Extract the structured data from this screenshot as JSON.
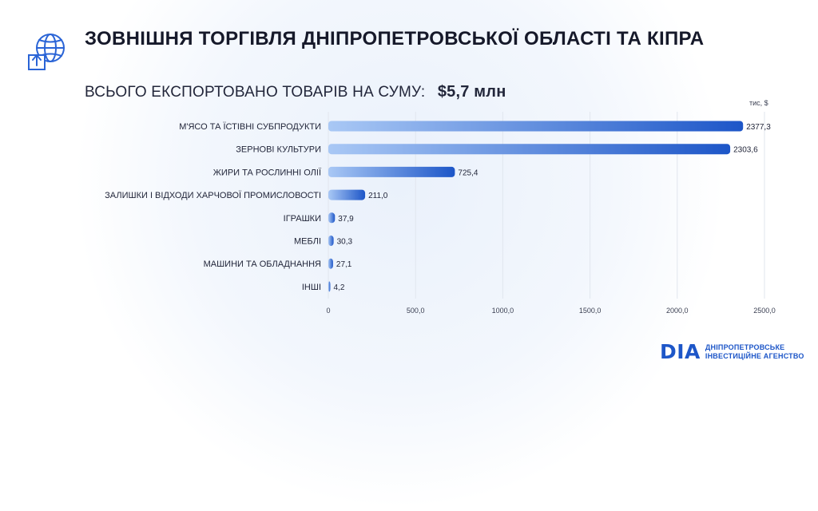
{
  "header": {
    "title": "ЗОВНІШНЯ ТОРГІВЛЯ ДНІПРОПЕТРОВСЬКОЇ ОБЛАСТІ ТА КІПРА",
    "subtitle_label": "ВСЬОГО ЕКСПОРТОВАНО ТОВАРІВ НА СУМУ:",
    "subtitle_value": "$5,7 млн"
  },
  "icons": {
    "header_icon": "globe-export-box-icon"
  },
  "colors": {
    "bar_start": "#a9c8f5",
    "bar_end": "#1d56c8",
    "brand": "#1d56c8"
  },
  "chart_data": {
    "type": "bar",
    "orientation": "horizontal",
    "unit_label": "тис, $",
    "categories": [
      "М'ЯСО ТА ЇСТІВНІ СУБПРОДУКТИ",
      "ЗЕРНОВІ КУЛЬТУРИ",
      "ЖИРИ ТА РОСЛИННІ ОЛІЇ",
      "ЗАЛИШКИ І ВІДХОДИ ХАРЧОВОЇ ПРОМИСЛОВОСТІ",
      "ІГРАШКИ",
      "МЕБЛІ",
      "МАШИНИ ТА ОБЛАДНАННЯ",
      "ІНШІ"
    ],
    "values": [
      2377.3,
      2303.6,
      725.4,
      211.0,
      37.9,
      30.3,
      27.1,
      4.2
    ],
    "value_labels": [
      "2377,3",
      "2303,6",
      "725,4",
      "211,0",
      "37,9",
      "30,3",
      "27,1",
      "4,2"
    ],
    "x_ticks": [
      0,
      500,
      1000,
      1500,
      2000,
      2500
    ],
    "x_tick_labels": [
      "0",
      "500,0",
      "1000,0",
      "1500,0",
      "2000,0",
      "2500,0"
    ],
    "xlim": [
      0,
      2500
    ],
    "grid": true
  },
  "brand": {
    "mark": "DIA",
    "line1": "ДНІПРОПЕТРОВСЬКЕ",
    "line2": "ІНВЕСТИЦІЙНЕ АГЕНСТВО"
  }
}
